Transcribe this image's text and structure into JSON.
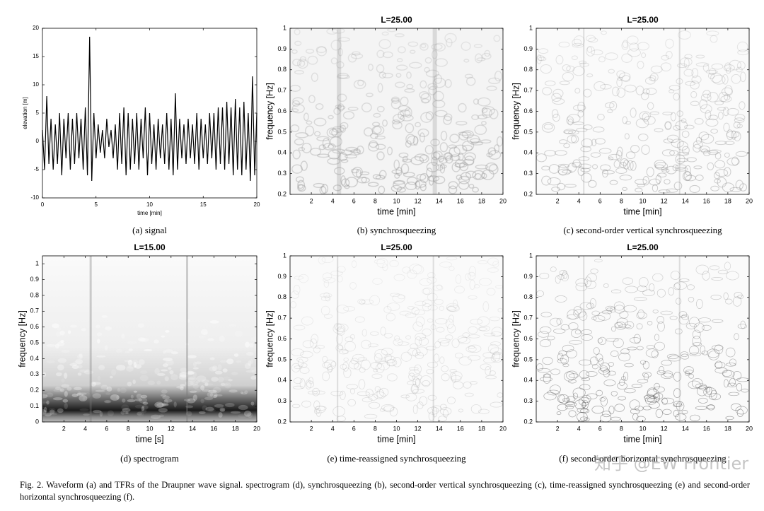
{
  "chart_data": [
    {
      "type": "line",
      "caption": "(a) signal",
      "xlabel": "time [min]",
      "ylabel": "elevation [m]",
      "color": "#000000",
      "xlim": [
        0,
        20
      ],
      "ylim": [
        -10,
        20
      ],
      "xticks": [
        0,
        5,
        10,
        15,
        20
      ],
      "yticks": [
        -10,
        -5,
        0,
        5,
        10,
        15,
        20
      ],
      "x": [
        0,
        0.2,
        0.4,
        0.6,
        0.8,
        1,
        1.2,
        1.4,
        1.6,
        1.8,
        2,
        2.2,
        2.4,
        2.6,
        2.8,
        3,
        3.2,
        3.4,
        3.6,
        3.8,
        4,
        4.2,
        4.4,
        4.6,
        4.8,
        5,
        5.2,
        5.4,
        5.6,
        5.8,
        6,
        6.2,
        6.4,
        6.6,
        6.8,
        7,
        7.2,
        7.4,
        7.6,
        7.8,
        8,
        8.2,
        8.4,
        8.6,
        8.8,
        9,
        9.2,
        9.4,
        9.6,
        9.8,
        10,
        10.2,
        10.4,
        10.6,
        10.8,
        11,
        11.2,
        11.4,
        11.6,
        11.8,
        12,
        12.2,
        12.4,
        12.6,
        12.8,
        13,
        13.2,
        13.4,
        13.6,
        13.8,
        14,
        14.2,
        14.4,
        14.6,
        14.8,
        15,
        15.2,
        15.4,
        15.6,
        15.8,
        16,
        16.2,
        16.4,
        16.6,
        16.8,
        17,
        17.2,
        17.4,
        17.6,
        17.8,
        18,
        18.2,
        18.4,
        18.6,
        18.8,
        19,
        19.2,
        19.4,
        19.6,
        19.8,
        20
      ],
      "values": [
        2,
        -5,
        8,
        -4,
        4,
        -5,
        3,
        -4,
        5,
        -6,
        4,
        -3,
        5,
        -5,
        4,
        -4,
        5,
        -3,
        4,
        -5,
        6,
        -6,
        18.5,
        -7,
        5,
        -3,
        3,
        -2,
        2,
        -3,
        4,
        -1,
        2,
        -3,
        3,
        -5,
        5,
        -4,
        6,
        -6,
        5,
        -5,
        4,
        -4,
        5,
        -5,
        4,
        -3,
        6,
        -6,
        5,
        -4,
        3,
        -5,
        4,
        -3,
        3,
        -4,
        5,
        -5,
        4,
        -6,
        8.5,
        -5,
        4,
        -3,
        3,
        -4,
        4,
        -3,
        3,
        -4,
        5,
        -5,
        4,
        -3,
        3,
        -4,
        5,
        -3,
        5,
        -5,
        6,
        -4,
        6,
        -5,
        7,
        -4,
        6,
        -6,
        7.5,
        -5,
        6,
        -6,
        7,
        -5,
        5,
        -7,
        11.5,
        -6,
        5
      ]
    },
    {
      "type": "tfr",
      "style": "synchro",
      "title": "L=25.00",
      "caption": "(b) synchrosqueezing",
      "xlabel": "time [min]",
      "ylabel": "frequency [Hz]",
      "xlim": [
        0,
        20
      ],
      "ylim": [
        0.2,
        1
      ],
      "xticks": [
        2,
        4,
        6,
        8,
        10,
        12,
        14,
        16,
        18,
        20
      ],
      "yticks": [
        0.2,
        0.3,
        0.4,
        0.5,
        0.6,
        0.7,
        0.8,
        0.9,
        1
      ]
    },
    {
      "type": "tfr",
      "style": "vertical",
      "title": "L=25.00",
      "caption": "(c) second-order vertical synchrosqueezing",
      "xlabel": "time [min]",
      "ylabel": "frequency [Hz]",
      "xlim": [
        0,
        20
      ],
      "ylim": [
        0.2,
        1
      ],
      "xticks": [
        2,
        4,
        6,
        8,
        10,
        12,
        14,
        16,
        18,
        20
      ],
      "yticks": [
        0.2,
        0.3,
        0.4,
        0.5,
        0.6,
        0.7,
        0.8,
        0.9,
        1
      ]
    },
    {
      "type": "tfr",
      "style": "spectrogram",
      "title": "L=15.00",
      "caption": "(d) spectrogram",
      "xlabel": "time [s]",
      "ylabel": "frequency [Hz]",
      "xlim": [
        0,
        20
      ],
      "ylim": [
        0,
        1.05
      ],
      "xticks": [
        2,
        4,
        6,
        8,
        10,
        12,
        14,
        16,
        18,
        20
      ],
      "yticks": [
        0,
        0.1,
        0.2,
        0.3,
        0.4,
        0.5,
        0.6,
        0.7,
        0.8,
        0.9,
        1
      ]
    },
    {
      "type": "tfr",
      "style": "reassigned",
      "title": "L=25.00",
      "caption": "(e) time-reassigned synchrosqueezing",
      "xlabel": "time [min]",
      "ylabel": "frequency [Hz]",
      "xlim": [
        0,
        20
      ],
      "ylim": [
        0.2,
        1
      ],
      "xticks": [
        2,
        4,
        6,
        8,
        10,
        12,
        14,
        16,
        18,
        20
      ],
      "yticks": [
        0.2,
        0.3,
        0.4,
        0.5,
        0.6,
        0.7,
        0.8,
        0.9,
        1
      ]
    },
    {
      "type": "tfr",
      "style": "horizontal",
      "title": "L=25.00",
      "caption": "(f) second-order horizontal synchrosqueezing",
      "xlabel": "time [min]",
      "ylabel": "frequency [Hz]",
      "xlim": [
        0,
        20
      ],
      "ylim": [
        0.2,
        1
      ],
      "xticks": [
        2,
        4,
        6,
        8,
        10,
        12,
        14,
        16,
        18,
        20
      ],
      "yticks": [
        0.2,
        0.3,
        0.4,
        0.5,
        0.6,
        0.7,
        0.8,
        0.9,
        1
      ]
    }
  ],
  "figure_caption": "Fig. 2. Waveform (a) and TFRs of the Draupner wave signal. spectrogram (d), synchrosqueezing (b), second-order vertical synchrosqueezing (c), time-reassigned synchrosqueezing (e) and second-order horizontal synchrosqueezing (f).",
  "watermark": "知乎 @EW Frontier"
}
